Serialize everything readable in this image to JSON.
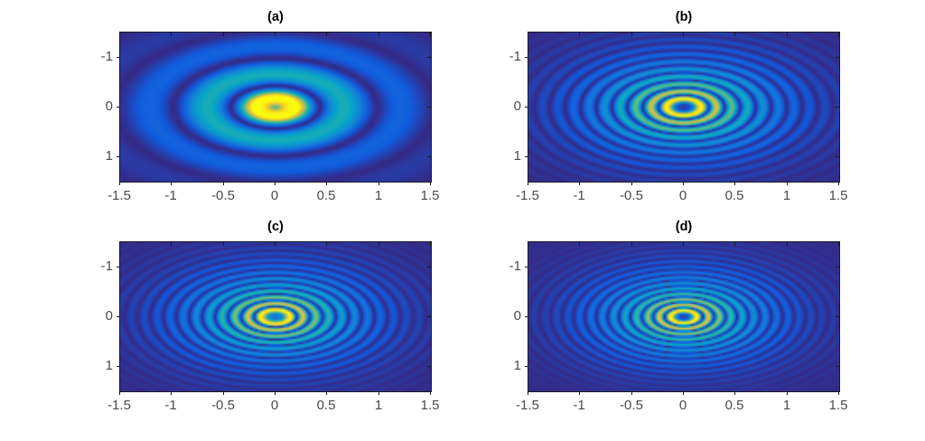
{
  "figure": {
    "background_color": "#ffffff",
    "title_color": "#000000",
    "tick_label_color": "#4b4b4b",
    "axis_box_color": "#1b1b1b"
  },
  "chart_data": {
    "type": "heatmap",
    "layout": "2x2 grid of MATLAB-style imagesc panels showing concentric elliptical ring (Bessel-like beam intensity) patterns",
    "colormap": "parula",
    "colormap_anchors": [
      [
        0.0,
        "#352a87"
      ],
      [
        0.12,
        "#115add"
      ],
      [
        0.25,
        "#1481d6"
      ],
      [
        0.38,
        "#06a4ca"
      ],
      [
        0.5,
        "#2cb7a0"
      ],
      [
        0.62,
        "#81be6e"
      ],
      [
        0.75,
        "#c5be54"
      ],
      [
        0.87,
        "#fbc724"
      ],
      [
        1.0,
        "#f9fb0e"
      ]
    ],
    "x_range": [
      -1.5,
      1.5
    ],
    "y_range": [
      -1.5,
      1.5
    ],
    "y_axis_direction": "reversed (-1 at top, 1 at bottom)",
    "x_ticks": [
      -1.5,
      -1,
      -0.5,
      0,
      0.5,
      1,
      1.5
    ],
    "x_tick_labels": [
      "-1.5",
      "-1",
      "-0.5",
      "0",
      "0.5",
      "1",
      "1.5"
    ],
    "y_ticks": [
      -1,
      0,
      1
    ],
    "y_tick_labels": [
      "-1",
      "0",
      "1"
    ],
    "panels": [
      {
        "label": "(a)",
        "description": "bright yellow central lobe (radius ~0.3) with small teal dot at origin, dark ring at r~0.45, cyan ring at r~0.65, faint blue ring at r~1.2",
        "model": {
          "type": "bessel0",
          "k": 5.6,
          "gain": 1.9,
          "gamma": 1.3,
          "env_sigma": 1.25,
          "dip_depth": 0.45,
          "dip_width": 0.075
        }
      },
      {
        "label": "(b)",
        "description": "dark core, bright yellow ring at r~0.17, rings spaced ~0.15 fading outward (green, cyan, blue) to r~1.3",
        "model": {
          "type": "rings",
          "r1": 0.17,
          "delta": 0.15,
          "L": 0.52,
          "c0": 0.05,
          "w": 0.065,
          "q": 1.3
        }
      },
      {
        "label": "(c)",
        "description": "slightly lighter blue core, bright yellow ring at r~0.15, rings spaced ~0.125 fading outward to r~1.4",
        "model": {
          "type": "rings",
          "r1": 0.145,
          "delta": 0.125,
          "L": 0.5,
          "c0": 0.22,
          "w": 0.055,
          "q": 1.3
        }
      },
      {
        "label": "(d)",
        "description": "dark core, bright yellow ring at r~0.13, dense rings spaced ~0.11 fading outward to r~1.5",
        "model": {
          "type": "rings",
          "r1": 0.13,
          "delta": 0.11,
          "L": 0.48,
          "c0": 0.07,
          "w": 0.05,
          "q": 1.3
        }
      }
    ]
  }
}
